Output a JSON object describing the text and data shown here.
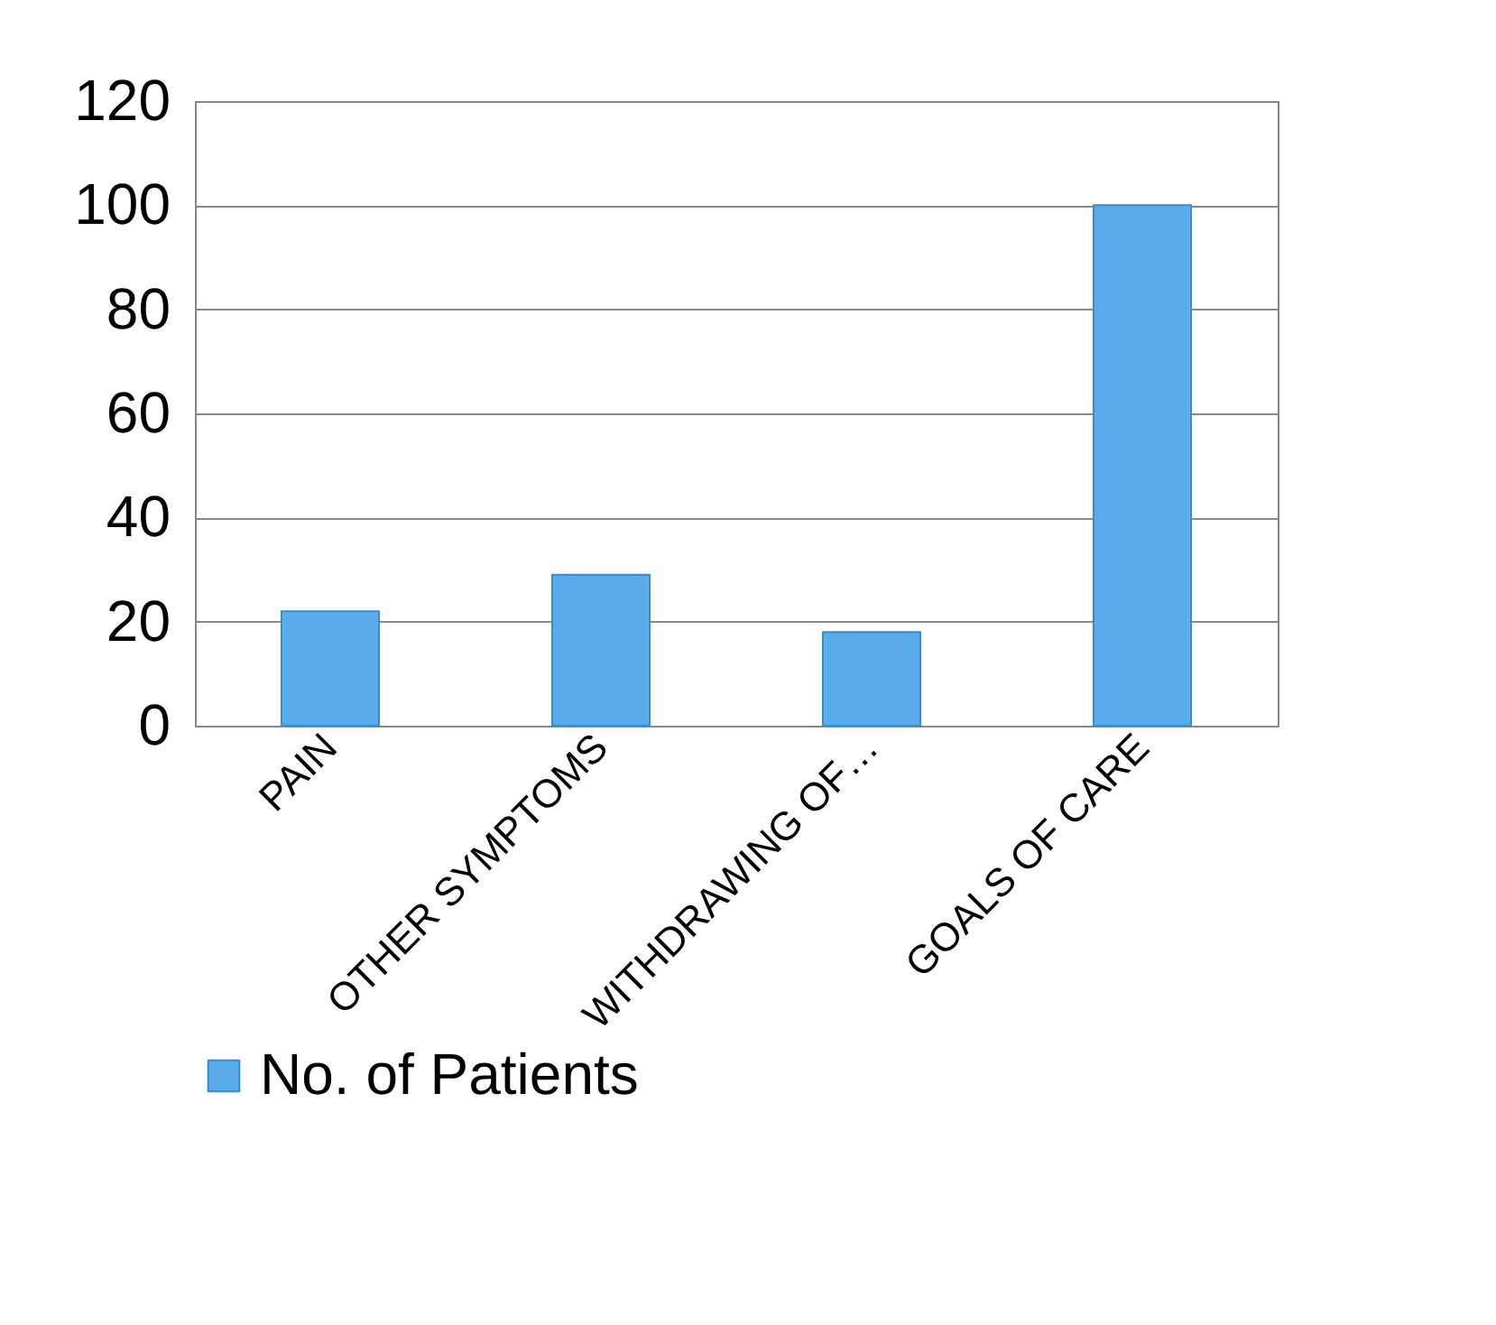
{
  "chart_data": {
    "type": "bar",
    "categories": [
      "PAIN",
      "OTHER SYMPTOMS",
      "WITHDRAWING OF…",
      "GOALS OF CARE"
    ],
    "series": [
      {
        "name": "No. of Patients",
        "color": "#5aabea",
        "values": [
          22,
          29,
          18,
          100
        ]
      }
    ],
    "ylim": [
      0,
      120
    ],
    "yticks": [
      0,
      20,
      40,
      60,
      80,
      100,
      120
    ],
    "grid": "y",
    "legend": "bottom"
  }
}
